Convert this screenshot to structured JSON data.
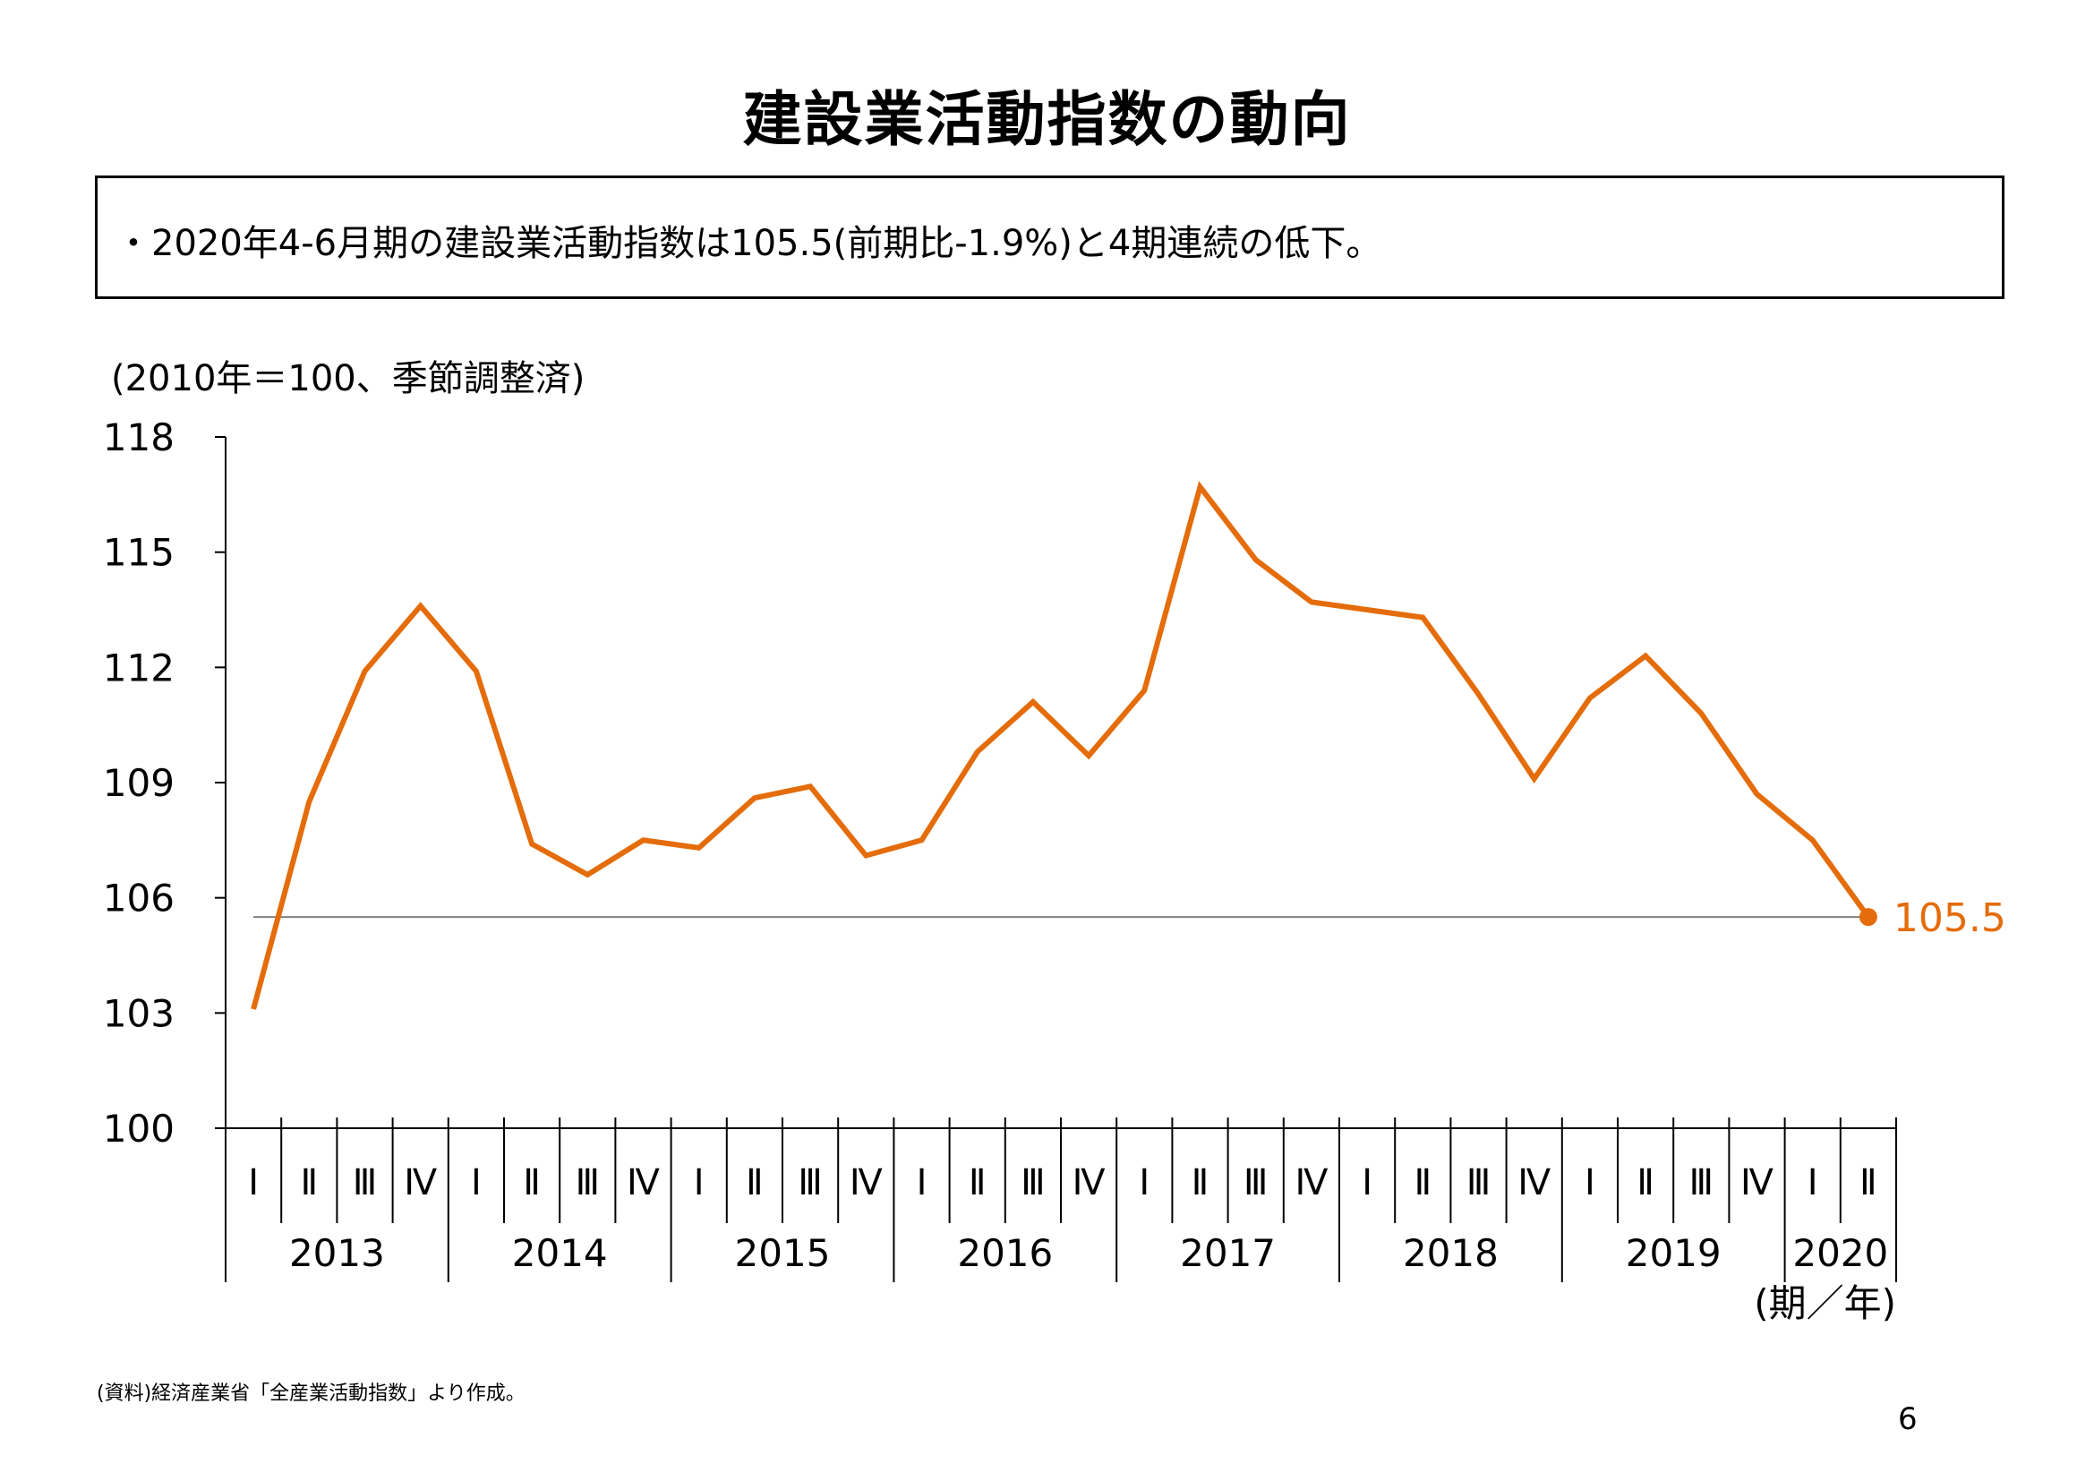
{
  "title": "建設業活動指数の動向",
  "summary": "・2020年4-6月期の建設業活動指数は105.5(前期比-1.9%)と4期連続の低下。",
  "unit_label": "(2010年＝100、季節調整済)",
  "source": "(資料)経済産業省「全産業活動指数」より作成。",
  "page_number": "6",
  "chart_data": {
    "type": "line",
    "title": "",
    "ylabel": "(2010年＝100、季節調整済)",
    "xlabel": "(期／年)",
    "ylim": [
      100,
      118
    ],
    "yticks": [
      "100",
      "103",
      "106",
      "109",
      "112",
      "115",
      "118"
    ],
    "quarter_labels": [
      "Ⅰ",
      "Ⅱ",
      "Ⅲ",
      "Ⅳ",
      "Ⅰ",
      "Ⅱ",
      "Ⅲ",
      "Ⅳ",
      "Ⅰ",
      "Ⅱ",
      "Ⅲ",
      "Ⅳ",
      "Ⅰ",
      "Ⅱ",
      "Ⅲ",
      "Ⅳ",
      "Ⅰ",
      "Ⅱ",
      "Ⅲ",
      "Ⅳ",
      "Ⅰ",
      "Ⅱ",
      "Ⅲ",
      "Ⅳ",
      "Ⅰ",
      "Ⅱ",
      "Ⅲ",
      "Ⅳ",
      "Ⅰ",
      "Ⅱ"
    ],
    "years": [
      {
        "label": "2013",
        "quarters": 4
      },
      {
        "label": "2014",
        "quarters": 4
      },
      {
        "label": "2015",
        "quarters": 4
      },
      {
        "label": "2016",
        "quarters": 4
      },
      {
        "label": "2017",
        "quarters": 4
      },
      {
        "label": "2018",
        "quarters": 4
      },
      {
        "label": "2019",
        "quarters": 4
      },
      {
        "label": "2020",
        "quarters": 2
      }
    ],
    "series": [
      {
        "color": "#e46c0a",
        "values": [
          103.1,
          108.5,
          111.9,
          113.6,
          111.9,
          107.4,
          106.6,
          107.5,
          107.3,
          108.6,
          108.9,
          107.1,
          107.5,
          109.8,
          111.1,
          109.7,
          111.4,
          116.7,
          114.8,
          113.7,
          113.5,
          113.3,
          111.3,
          109.1,
          111.2,
          112.3,
          110.8,
          108.7,
          107.5,
          105.5
        ]
      }
    ],
    "reference_line": {
      "value": 105.5,
      "color": "#808080"
    },
    "end_label": "105.5",
    "grid": false
  }
}
